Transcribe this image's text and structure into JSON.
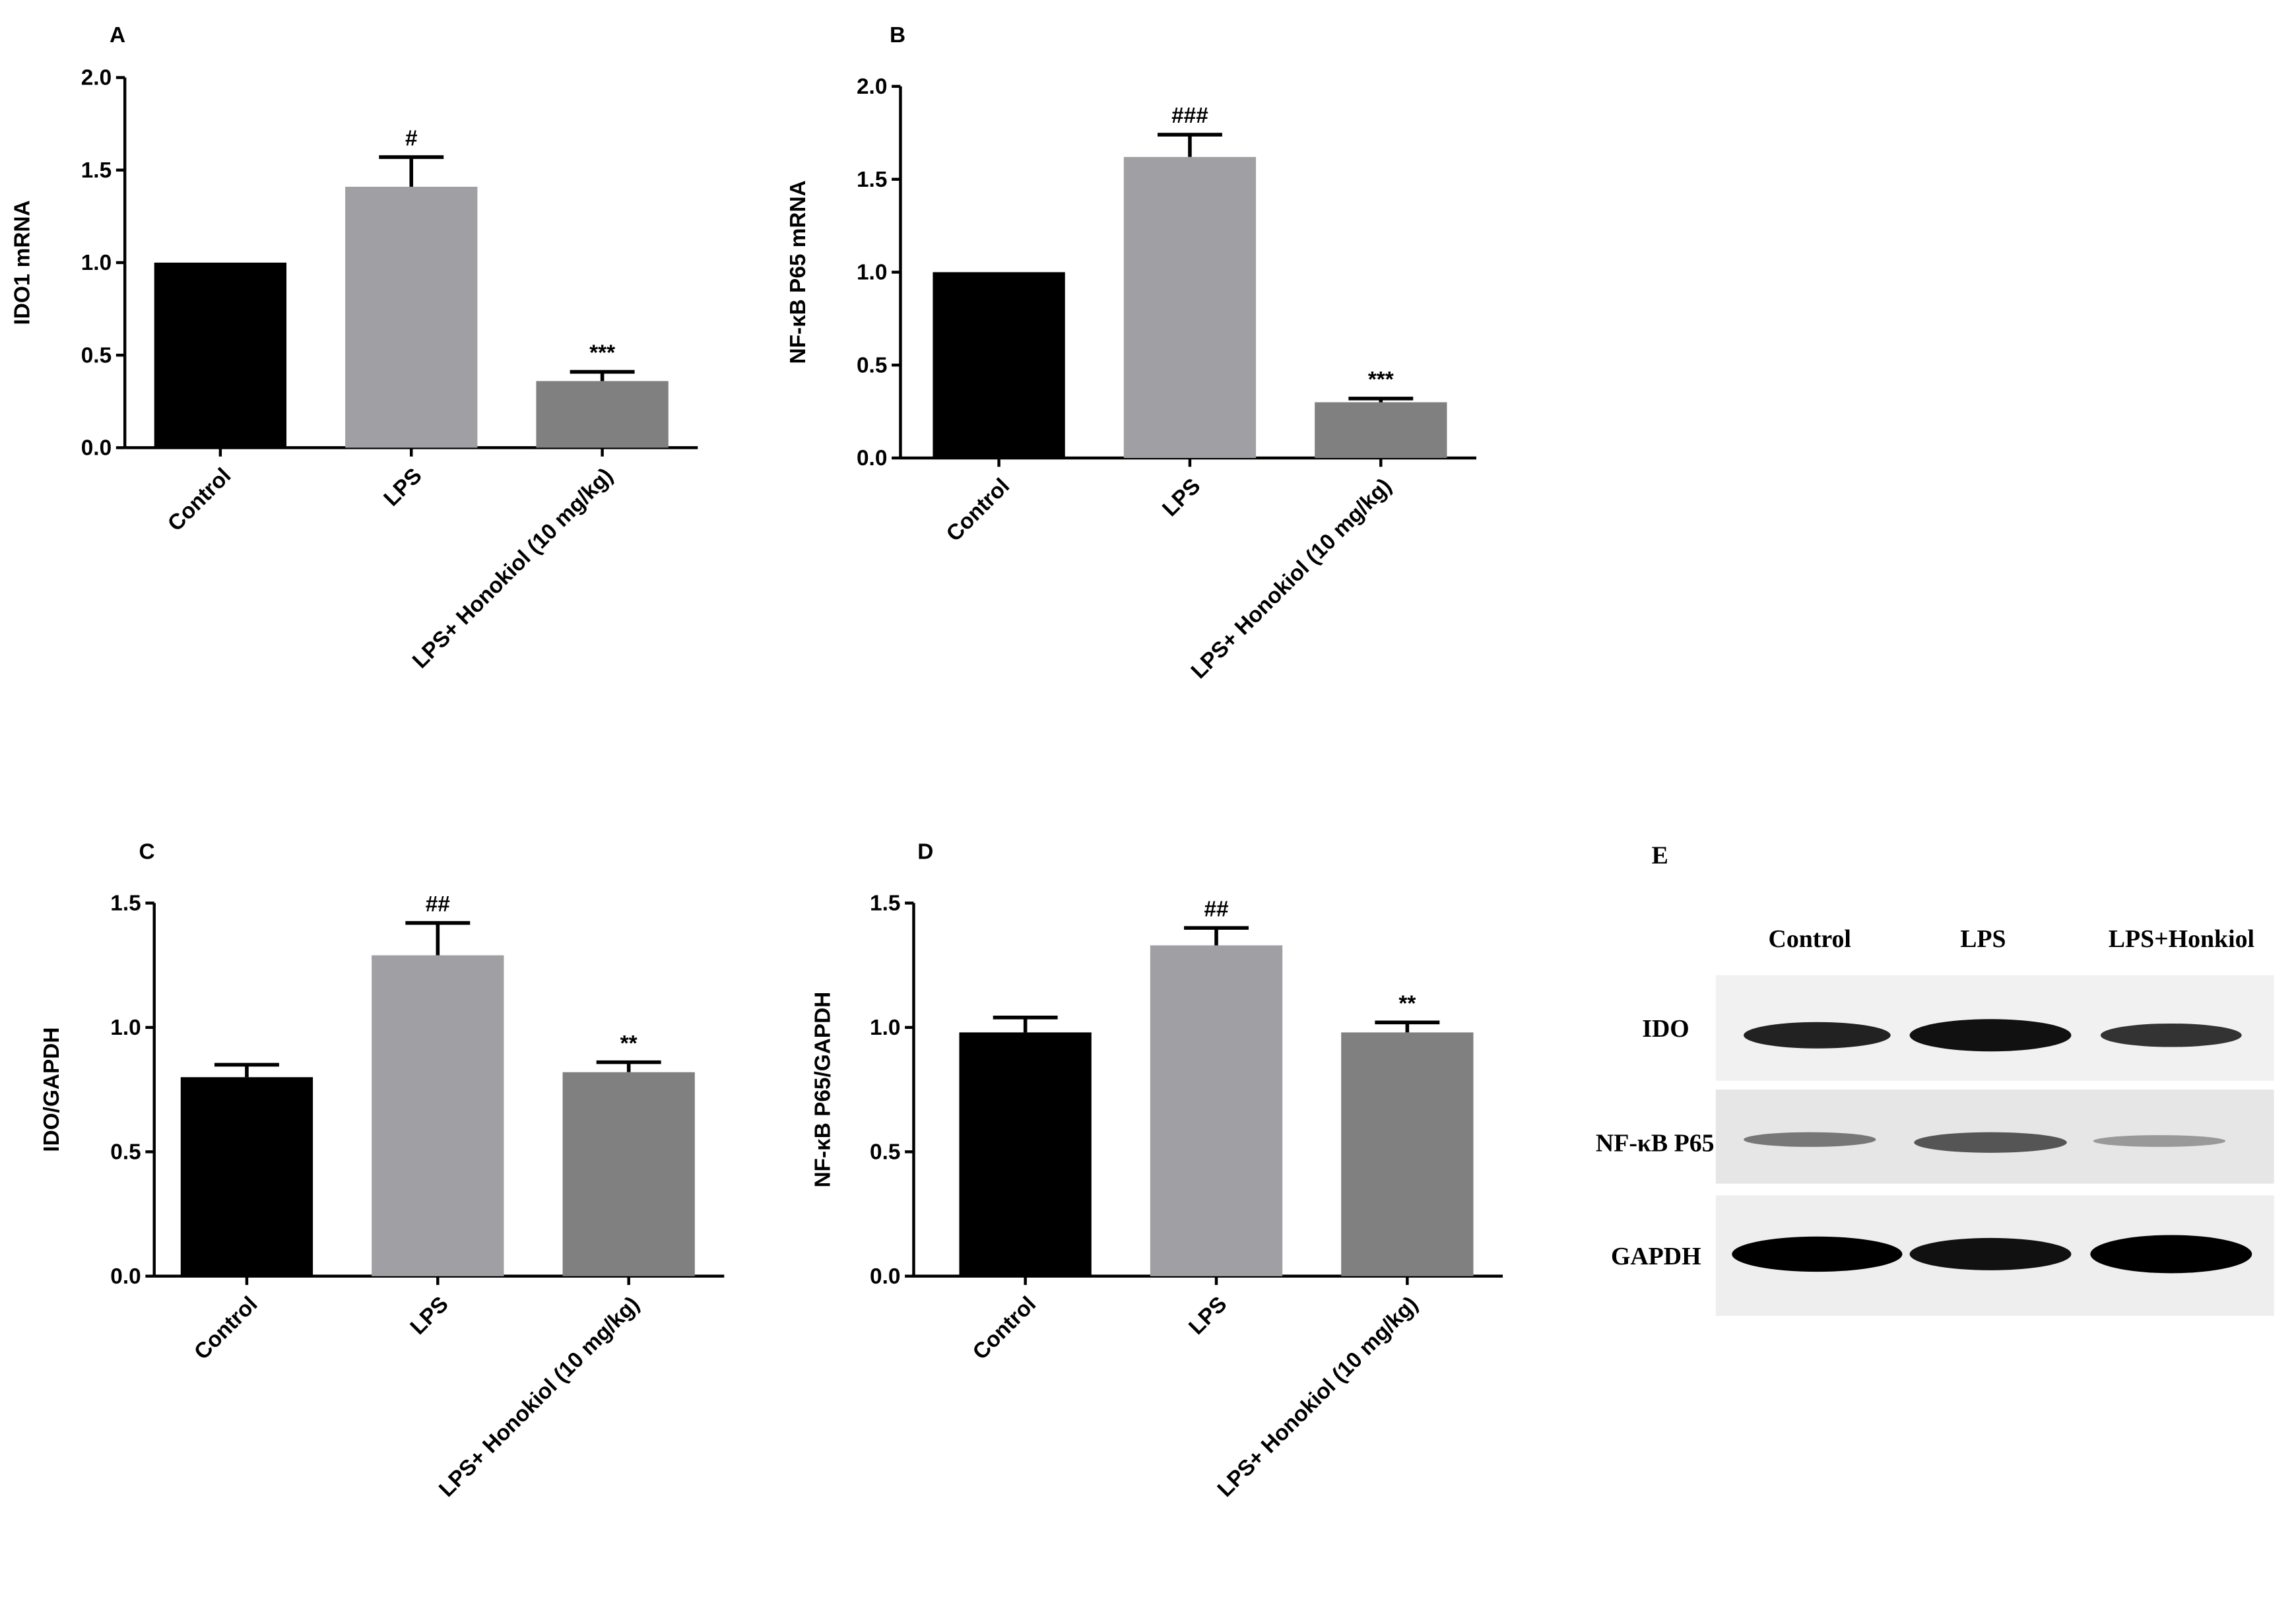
{
  "chart_data": [
    {
      "type": "bar",
      "panel": "A",
      "ylabel": "IDO1 mRNA",
      "categories": [
        "Control",
        "LPS",
        "LPS+ Honokiol (10 mg/kg)"
      ],
      "values": [
        1.0,
        1.41,
        0.36
      ],
      "errors": [
        0,
        0.16,
        0.05
      ],
      "annotations": [
        null,
        "#",
        "***"
      ],
      "colors": [
        "#000000",
        "#a0a0a4",
        "#808080"
      ],
      "ylim": [
        0,
        2
      ],
      "yticks": [
        {
          "value": 0,
          "label": "0.0"
        },
        {
          "value": 0.5,
          "label": "0.5"
        },
        {
          "value": 1,
          "label": "1.0"
        },
        {
          "value": 1.5,
          "label": "1.5"
        },
        {
          "value": 2,
          "label": "2.0"
        }
      ]
    },
    {
      "type": "bar",
      "panel": "B",
      "ylabel": "NF-κB P65 mRNA",
      "categories": [
        "Control",
        "LPS",
        "LPS+ Honokiol (10 mg/kg)"
      ],
      "values": [
        1.0,
        1.62,
        0.3
      ],
      "errors": [
        0,
        0.12,
        0.02
      ],
      "annotations": [
        null,
        "###",
        "***"
      ],
      "colors": [
        "#000000",
        "#a0a0a4",
        "#808080"
      ],
      "ylim": [
        0,
        2
      ],
      "yticks": [
        {
          "value": 0,
          "label": "0.0"
        },
        {
          "value": 0.5,
          "label": "0.5"
        },
        {
          "value": 1,
          "label": "1.0"
        },
        {
          "value": 1.5,
          "label": "1.5"
        },
        {
          "value": 2,
          "label": "2.0"
        }
      ]
    },
    {
      "type": "bar",
      "panel": "C",
      "ylabel": "IDO/GAPDH",
      "categories": [
        "Control",
        "LPS",
        "LPS+ Honokiol (10 mg/kg)"
      ],
      "values": [
        0.8,
        1.29,
        0.82
      ],
      "errors": [
        0.05,
        0.13,
        0.04
      ],
      "annotations": [
        null,
        "##",
        "**"
      ],
      "colors": [
        "#000000",
        "#a0a0a4",
        "#808080"
      ],
      "ylim": [
        0,
        1.5
      ],
      "yticks": [
        {
          "value": 0,
          "label": "0.0"
        },
        {
          "value": 0.5,
          "label": "0.5"
        },
        {
          "value": 1,
          "label": "1.0"
        },
        {
          "value": 1.5,
          "label": "1.5"
        }
      ]
    },
    {
      "type": "bar",
      "panel": "D",
      "ylabel": "NF-κB P65/GAPDH",
      "categories": [
        "Control",
        "LPS",
        "LPS+ Honokiol (10 mg/kg)"
      ],
      "values": [
        0.98,
        1.33,
        0.98
      ],
      "errors": [
        0.06,
        0.07,
        0.04
      ],
      "annotations": [
        null,
        "##",
        "**"
      ],
      "colors": [
        "#000000",
        "#a0a0a4",
        "#808080"
      ],
      "ylim": [
        0,
        1.5
      ],
      "yticks": [
        {
          "value": 0,
          "label": "0.0"
        },
        {
          "value": 0.5,
          "label": "0.5"
        },
        {
          "value": 1,
          "label": "1.0"
        },
        {
          "value": 1.5,
          "label": "1.5"
        }
      ]
    }
  ],
  "blot": {
    "panel": "E",
    "columns": [
      "Control",
      "LPS",
      "LPS+Honkiol"
    ],
    "rows": [
      "IDO",
      "NF-κB P65",
      "GAPDH"
    ]
  }
}
